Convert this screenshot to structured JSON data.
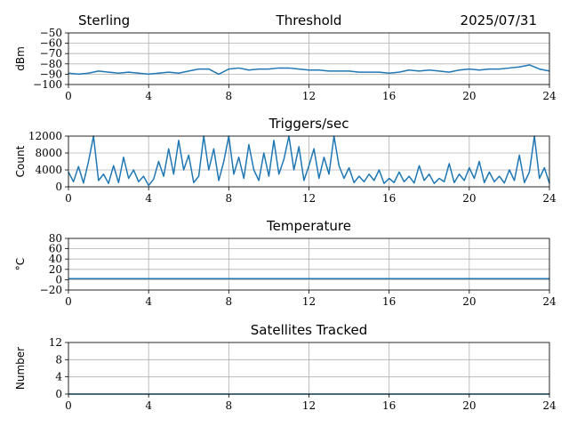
{
  "header": {
    "station": "Sterling",
    "date": "2025/07/31"
  },
  "colors": {
    "series": "#1f77b4",
    "grid": "#b0b0b0",
    "axes": "#000000"
  },
  "chart_data": [
    {
      "id": "threshold",
      "type": "line",
      "title": "Threshold",
      "xlabel": "",
      "ylabel": "dBm",
      "xlim": [
        0,
        24
      ],
      "ylim": [
        -100,
        -50
      ],
      "xticks": [
        0,
        4,
        8,
        12,
        16,
        20,
        24
      ],
      "yticks": [
        -100,
        -90,
        -80,
        -70,
        -60,
        -50
      ],
      "yticklabels": [
        "−100",
        "−90",
        "−80",
        "−70",
        "−60",
        "−50"
      ],
      "grid": true,
      "x": [
        0,
        0.5,
        1,
        1.5,
        2,
        2.5,
        3,
        3.5,
        4,
        4.5,
        5,
        5.5,
        6,
        6.5,
        7,
        7.5,
        8,
        8.5,
        9,
        9.5,
        10,
        10.5,
        11,
        11.5,
        12,
        12.5,
        13,
        13.5,
        14,
        14.5,
        15,
        15.5,
        16,
        16.5,
        17,
        17.5,
        18,
        18.5,
        19,
        19.5,
        20,
        20.5,
        21,
        21.5,
        22,
        22.5,
        23,
        23.5,
        24
      ],
      "values": [
        -89,
        -90,
        -89,
        -87,
        -88,
        -89,
        -88,
        -89,
        -90,
        -89,
        -88,
        -89,
        -87,
        -85,
        -85,
        -90,
        -85,
        -84,
        -86,
        -85,
        -85,
        -84,
        -84,
        -85,
        -86,
        -86,
        -87,
        -87,
        -87,
        -88,
        -88,
        -88,
        -89,
        -88,
        -86,
        -87,
        -86,
        -87,
        -88,
        -86,
        -85,
        -86,
        -85,
        -85,
        -84,
        -83,
        -81,
        -85,
        -87
      ]
    },
    {
      "id": "triggers",
      "type": "line",
      "title": "Triggers/sec",
      "xlabel": "",
      "ylabel": "Count",
      "xlim": [
        0,
        24
      ],
      "ylim": [
        0,
        12000
      ],
      "xticks": [
        0,
        4,
        8,
        12,
        16,
        20,
        24
      ],
      "yticks": [
        0,
        4000,
        8000,
        12000
      ],
      "yticklabels": [
        "0",
        "4000",
        "8000",
        "12000"
      ],
      "grid": true,
      "x": [
        0,
        0.25,
        0.5,
        0.75,
        1,
        1.25,
        1.5,
        1.75,
        2,
        2.25,
        2.5,
        2.75,
        3,
        3.25,
        3.5,
        3.75,
        4,
        4.25,
        4.5,
        4.75,
        5,
        5.25,
        5.5,
        5.75,
        6,
        6.25,
        6.5,
        6.75,
        7,
        7.25,
        7.5,
        7.75,
        8,
        8.25,
        8.5,
        8.75,
        9,
        9.25,
        9.5,
        9.75,
        10,
        10.25,
        10.5,
        10.75,
        11,
        11.25,
        11.5,
        11.75,
        12,
        12.25,
        12.5,
        12.75,
        13,
        13.25,
        13.5,
        13.75,
        14,
        14.25,
        14.5,
        14.75,
        15,
        15.25,
        15.5,
        15.75,
        16,
        16.25,
        16.5,
        16.75,
        17,
        17.25,
        17.5,
        17.75,
        18,
        18.25,
        18.5,
        18.75,
        19,
        19.25,
        19.5,
        19.75,
        20,
        20.25,
        20.5,
        20.75,
        21,
        21.25,
        21.5,
        21.75,
        22,
        22.25,
        22.5,
        22.75,
        23,
        23.25,
        23.5,
        23.75,
        24
      ],
      "values": [
        3500,
        1200,
        4800,
        900,
        6000,
        12000,
        1500,
        3000,
        800,
        5000,
        1000,
        7000,
        2000,
        4000,
        1200,
        2500,
        300,
        1800,
        6000,
        2500,
        9000,
        3000,
        11000,
        4000,
        7500,
        1000,
        2500,
        12000,
        4000,
        9000,
        1500,
        6000,
        12000,
        3000,
        7000,
        2000,
        10000,
        4000,
        1500,
        8000,
        2500,
        11000,
        3000,
        6500,
        12000,
        4000,
        9500,
        1500,
        5000,
        9000,
        2000,
        7000,
        3000,
        12000,
        5000,
        2000,
        4500,
        1000,
        2500,
        1200,
        3000,
        1500,
        4000,
        800,
        2000,
        1000,
        3500,
        1200,
        2500,
        900,
        5000,
        1500,
        3000,
        800,
        2000,
        1200,
        5500,
        1000,
        3000,
        1500,
        4500,
        2000,
        6000,
        1000,
        3500,
        1200,
        2500,
        900,
        4000,
        1500,
        7500,
        1000,
        3500,
        12000,
        2000,
        4500,
        800
      ]
    },
    {
      "id": "temperature",
      "type": "line",
      "title": "Temperature",
      "xlabel": "",
      "ylabel": "°C",
      "xlim": [
        0,
        24
      ],
      "ylim": [
        -20,
        80
      ],
      "xticks": [
        0,
        4,
        8,
        12,
        16,
        20,
        24
      ],
      "yticks": [
        -20,
        0,
        20,
        40,
        60,
        80
      ],
      "yticklabels": [
        "−20",
        "0",
        "20",
        "40",
        "60",
        "80"
      ],
      "grid": true,
      "x": [
        0,
        24
      ],
      "values": [
        2,
        2
      ]
    },
    {
      "id": "satellites",
      "type": "line",
      "title": "Satellites Tracked",
      "xlabel": "",
      "ylabel": "Number",
      "xlim": [
        0,
        24
      ],
      "ylim": [
        0,
        12
      ],
      "xticks": [
        0,
        4,
        8,
        12,
        16,
        20,
        24
      ],
      "yticks": [
        0,
        4,
        8,
        12
      ],
      "yticklabels": [
        "0",
        "4",
        "8",
        "12"
      ],
      "grid": true,
      "x": [
        0,
        24
      ],
      "values": [
        0,
        0
      ]
    }
  ]
}
